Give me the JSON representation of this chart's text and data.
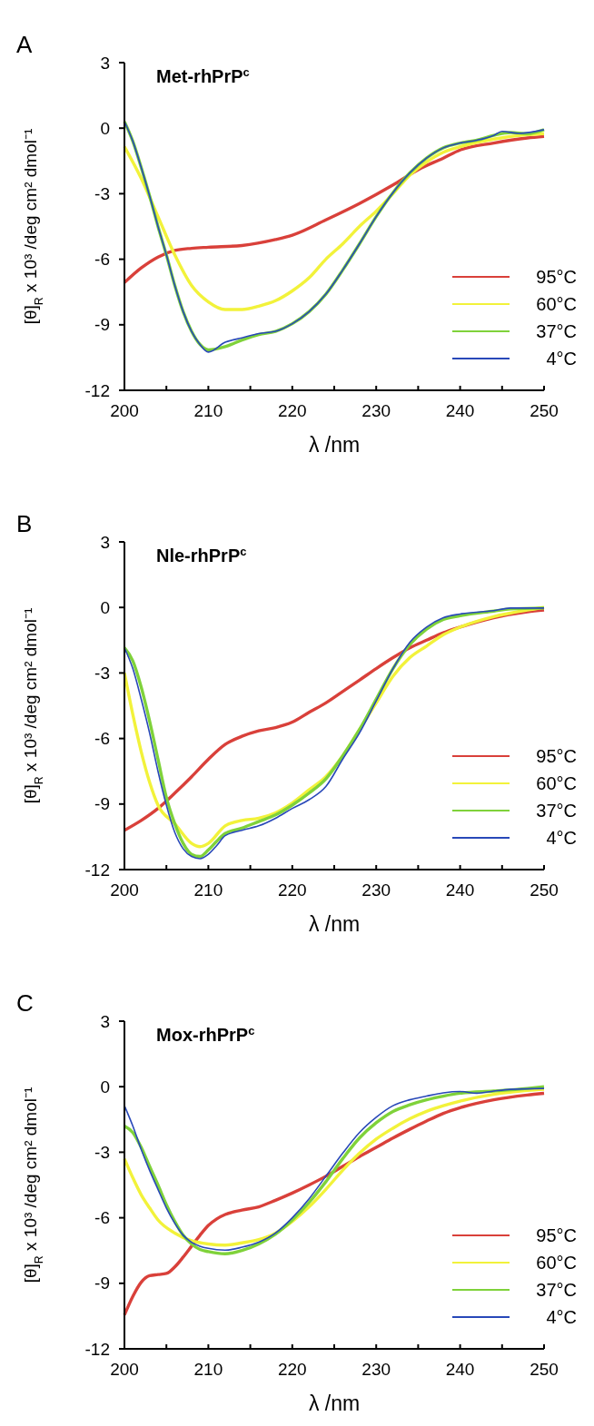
{
  "chart_data": [
    {
      "type": "line",
      "title": "Met-rhPrP$^{c}$",
      "annotations": [
        "A"
      ],
      "xlabel": "λ /nm",
      "ylabel": "[θ]$_{R}$ x 10³ /deg cm² dmol⁻¹",
      "xlim": [
        200,
        250
      ],
      "ylim": [
        -12,
        3
      ],
      "xticks": [
        200,
        {
          "value": 205,
          "label": null
        },
        210,
        {
          "value": 215,
          "label": null
        },
        220,
        {
          "value": 225,
          "label": null
        },
        230,
        {
          "value": 235,
          "label": null
        },
        240,
        {
          "value": 245,
          "label": null
        },
        250
      ],
      "yticks": [
        -12,
        -9,
        -6,
        -3,
        0,
        3
      ],
      "grid": false,
      "legend": "bottom right",
      "marker": "none",
      "line_style": "solid",
      "series": [
        {
          "name": "95°C",
          "color": "#d9403a",
          "x": [
            200,
            202,
            204,
            206,
            208,
            210,
            214,
            218,
            220,
            224,
            228,
            232,
            235,
            238,
            240,
            244,
            248,
            250
          ],
          "values": [
            -7.07,
            -6.4,
            -5.9,
            -5.6,
            -5.5,
            -5.45,
            -5.37,
            -5.1,
            -4.9,
            -4.2,
            -3.45,
            -2.6,
            -1.9,
            -1.37,
            -1.0,
            -0.68,
            -0.45,
            -0.38
          ]
        },
        {
          "name": "60°C",
          "color": "#f2f23a",
          "x": [
            200,
            202,
            204,
            206,
            208,
            210,
            212,
            214,
            216,
            218,
            220,
            222,
            224,
            226,
            228,
            230,
            232,
            234,
            236,
            238,
            240,
            244,
            248,
            250
          ],
          "values": [
            -0.85,
            -2.3,
            -4.05,
            -5.8,
            -7.2,
            -7.95,
            -8.3,
            -8.3,
            -8.15,
            -7.9,
            -7.45,
            -6.85,
            -6.0,
            -5.3,
            -4.5,
            -3.8,
            -3.0,
            -2.15,
            -1.55,
            -1.1,
            -0.85,
            -0.5,
            -0.3,
            -0.25
          ]
        },
        {
          "name": "37°C",
          "color": "#7fd23a",
          "x": [
            200,
            201,
            202,
            203,
            204,
            205,
            206,
            207,
            208,
            209,
            210,
            212,
            214,
            216,
            218,
            220,
            222,
            224,
            226,
            228,
            230,
            232,
            234,
            236,
            238,
            240,
            242,
            244,
            246,
            248,
            250
          ],
          "values": [
            0.3,
            -0.6,
            -1.8,
            -3.1,
            -4.5,
            -5.8,
            -7.2,
            -8.4,
            -9.3,
            -9.9,
            -10.15,
            -10.0,
            -9.7,
            -9.45,
            -9.3,
            -8.95,
            -8.4,
            -7.6,
            -6.5,
            -5.3,
            -4.05,
            -2.95,
            -2.05,
            -1.37,
            -0.9,
            -0.68,
            -0.55,
            -0.33,
            -0.2,
            -0.25,
            -0.07
          ]
        },
        {
          "name": "4°C",
          "color": "#2848b8",
          "x": [
            200,
            201,
            202,
            203,
            204,
            205,
            206,
            207,
            208,
            209,
            210,
            212,
            214,
            216,
            218,
            220,
            222,
            224,
            226,
            228,
            230,
            232,
            234,
            236,
            238,
            240,
            242,
            244,
            245,
            247,
            250
          ],
          "values": [
            0.3,
            -0.6,
            -1.8,
            -3.1,
            -4.5,
            -5.8,
            -7.2,
            -8.4,
            -9.3,
            -9.9,
            -10.25,
            -9.8,
            -9.6,
            -9.4,
            -9.3,
            -8.95,
            -8.4,
            -7.6,
            -6.5,
            -5.3,
            -4.05,
            -2.95,
            -2.05,
            -1.37,
            -0.9,
            -0.68,
            -0.55,
            -0.33,
            -0.15,
            -0.24,
            -0.07
          ]
        }
      ]
    },
    {
      "type": "line",
      "title": "Nle-rhPrP$^{c}$",
      "annotations": [
        "B"
      ],
      "xlabel": "λ /nm",
      "ylabel": "[θ]$_{R}$ x 10³ /deg cm² dmol⁻¹",
      "xlim": [
        200,
        250
      ],
      "ylim": [
        -12,
        3
      ],
      "xticks": [
        200,
        {
          "value": 205,
          "label": null
        },
        210,
        {
          "value": 215,
          "label": null
        },
        220,
        {
          "value": 225,
          "label": null
        },
        230,
        {
          "value": 235,
          "label": null
        },
        240,
        {
          "value": 245,
          "label": null
        },
        250
      ],
      "yticks": [
        -12,
        -9,
        -6,
        -3,
        0,
        3
      ],
      "grid": false,
      "legend": "bottom right",
      "marker": "none",
      "line_style": "solid",
      "series": [
        {
          "name": "95°C",
          "color": "#d9403a",
          "x": [
            200,
            202,
            204,
            206,
            208,
            210,
            212,
            214,
            216,
            218,
            220,
            222,
            224,
            226,
            228,
            230,
            232,
            234,
            236,
            238,
            240,
            244,
            248,
            250
          ],
          "values": [
            -10.2,
            -9.75,
            -9.2,
            -8.5,
            -7.75,
            -6.95,
            -6.27,
            -5.9,
            -5.65,
            -5.5,
            -5.25,
            -4.8,
            -4.37,
            -3.85,
            -3.33,
            -2.8,
            -2.3,
            -1.85,
            -1.5,
            -1.16,
            -0.9,
            -0.47,
            -0.2,
            -0.12
          ]
        },
        {
          "name": "60°C",
          "color": "#f2f23a",
          "x": [
            200,
            201,
            202,
            203,
            204,
            206,
            208,
            209,
            210,
            212,
            214,
            216,
            218,
            220,
            222,
            224,
            226,
            228,
            230,
            232,
            234,
            236,
            238,
            240,
            244,
            248,
            250
          ],
          "values": [
            -3.0,
            -4.9,
            -6.6,
            -8.0,
            -9.05,
            -9.9,
            -10.8,
            -10.95,
            -10.8,
            -10.0,
            -9.75,
            -9.65,
            -9.4,
            -8.95,
            -8.35,
            -7.75,
            -6.8,
            -5.6,
            -4.37,
            -3.15,
            -2.3,
            -1.77,
            -1.25,
            -0.9,
            -0.42,
            -0.12,
            0
          ]
        },
        {
          "name": "37°C",
          "color": "#7fd23a",
          "x": [
            200,
            201,
            202,
            203,
            204,
            205,
            206,
            207,
            208,
            209,
            210,
            211,
            212,
            214,
            216,
            218,
            220,
            222,
            224,
            226,
            228,
            230,
            232,
            234,
            236,
            238,
            240,
            244,
            246,
            250
          ],
          "values": [
            -1.85,
            -2.45,
            -3.65,
            -5.2,
            -6.95,
            -8.7,
            -9.9,
            -10.8,
            -11.3,
            -11.4,
            -11.1,
            -10.7,
            -10.35,
            -10.1,
            -9.8,
            -9.5,
            -9.05,
            -8.5,
            -7.85,
            -6.8,
            -5.6,
            -4.2,
            -2.8,
            -1.7,
            -0.99,
            -0.55,
            -0.38,
            -0.17,
            -0.07,
            -0.03
          ]
        },
        {
          "name": "4°C",
          "color": "#2848b8",
          "x": [
            200,
            201,
            202,
            203,
            204,
            205,
            206,
            207,
            208,
            209,
            210,
            211,
            212,
            214,
            216,
            218,
            220,
            222,
            224,
            226,
            228,
            230,
            232,
            234,
            236,
            238,
            240,
            244,
            246,
            250
          ],
          "values": [
            -1.85,
            -2.8,
            -4.2,
            -5.75,
            -7.5,
            -9.05,
            -10.3,
            -11.05,
            -11.4,
            -11.5,
            -11.3,
            -10.9,
            -10.45,
            -10.2,
            -10.0,
            -9.65,
            -9.2,
            -8.8,
            -8.2,
            -6.95,
            -5.75,
            -4.28,
            -2.8,
            -1.6,
            -0.9,
            -0.47,
            -0.3,
            -0.15,
            -0.03,
            -0.03
          ]
        }
      ]
    },
    {
      "type": "line",
      "title": "Mox-rhPrP$^{c}$",
      "annotations": [
        "C"
      ],
      "xlabel": "λ /nm",
      "ylabel": "[θ]$_{R}$ x 10³ /deg cm² dmol⁻¹",
      "xlim": [
        200,
        250
      ],
      "ylim": [
        -12,
        3
      ],
      "xticks": [
        200,
        {
          "value": 205,
          "label": null
        },
        210,
        {
          "value": 215,
          "label": null
        },
        220,
        {
          "value": 225,
          "label": null
        },
        230,
        {
          "value": 235,
          "label": null
        },
        240,
        {
          "value": 245,
          "label": null
        },
        250
      ],
      "yticks": [
        -12,
        -9,
        -6,
        -3,
        0,
        3
      ],
      "grid": false,
      "legend": "bottom right",
      "marker": "none",
      "line_style": "solid",
      "series": [
        {
          "name": "95°C",
          "color": "#d9403a",
          "x": [
            200,
            201,
            202,
            203,
            204,
            205,
            206,
            207,
            208,
            209,
            210,
            211,
            212,
            214,
            216,
            218,
            220,
            222,
            224,
            226,
            228,
            230,
            232,
            234,
            236,
            238,
            240,
            244,
            248,
            250
          ],
          "values": [
            -10.45,
            -9.6,
            -8.95,
            -8.65,
            -8.6,
            -8.55,
            -8.25,
            -7.8,
            -7.3,
            -6.8,
            -6.35,
            -6.05,
            -5.85,
            -5.65,
            -5.5,
            -5.2,
            -4.87,
            -4.5,
            -4.1,
            -3.65,
            -3.2,
            -2.78,
            -2.35,
            -1.95,
            -1.57,
            -1.22,
            -0.96,
            -0.6,
            -0.38,
            -0.3
          ]
        },
        {
          "name": "60°C",
          "color": "#f2f23a",
          "x": [
            200,
            201,
            202,
            203,
            204,
            206,
            208,
            210,
            212,
            214,
            216,
            218,
            220,
            222,
            224,
            226,
            228,
            230,
            232,
            234,
            236,
            238,
            240,
            244,
            248,
            250
          ],
          "values": [
            -3.3,
            -4.17,
            -4.95,
            -5.55,
            -6.1,
            -6.7,
            -7.05,
            -7.2,
            -7.25,
            -7.15,
            -7.0,
            -6.7,
            -6.17,
            -5.5,
            -4.7,
            -3.83,
            -3.05,
            -2.4,
            -1.9,
            -1.47,
            -1.13,
            -0.87,
            -0.66,
            -0.35,
            -0.17,
            -0.12
          ]
        },
        {
          "name": "37°C",
          "color": "#7fd23a",
          "x": [
            200,
            201,
            202,
            203,
            204,
            205,
            206,
            207,
            208,
            209,
            210,
            212,
            214,
            216,
            218,
            220,
            222,
            224,
            226,
            228,
            230,
            232,
            234,
            236,
            238,
            240,
            244,
            248,
            250
          ],
          "values": [
            -1.8,
            -2.1,
            -2.78,
            -3.65,
            -4.5,
            -5.4,
            -6.17,
            -6.8,
            -7.2,
            -7.45,
            -7.55,
            -7.65,
            -7.5,
            -7.2,
            -6.75,
            -6.1,
            -5.3,
            -4.35,
            -3.3,
            -2.35,
            -1.65,
            -1.13,
            -0.83,
            -0.6,
            -0.43,
            -0.3,
            -0.2,
            -0.08,
            0
          ]
        },
        {
          "name": "4°C",
          "color": "#2848b8",
          "x": [
            200,
            201,
            202,
            203,
            204,
            205,
            206,
            207,
            208,
            209,
            210,
            212,
            214,
            216,
            218,
            220,
            222,
            224,
            226,
            228,
            230,
            232,
            234,
            236,
            238,
            240,
            242,
            244,
            246,
            250
          ],
          "values": [
            -0.87,
            -1.8,
            -2.87,
            -3.83,
            -4.7,
            -5.55,
            -6.25,
            -6.8,
            -7.12,
            -7.3,
            -7.4,
            -7.48,
            -7.35,
            -7.12,
            -6.7,
            -6.0,
            -5.13,
            -4.1,
            -3.05,
            -2.1,
            -1.4,
            -0.87,
            -0.6,
            -0.43,
            -0.28,
            -0.22,
            -0.3,
            -0.2,
            -0.12,
            -0.08
          ]
        }
      ]
    }
  ]
}
